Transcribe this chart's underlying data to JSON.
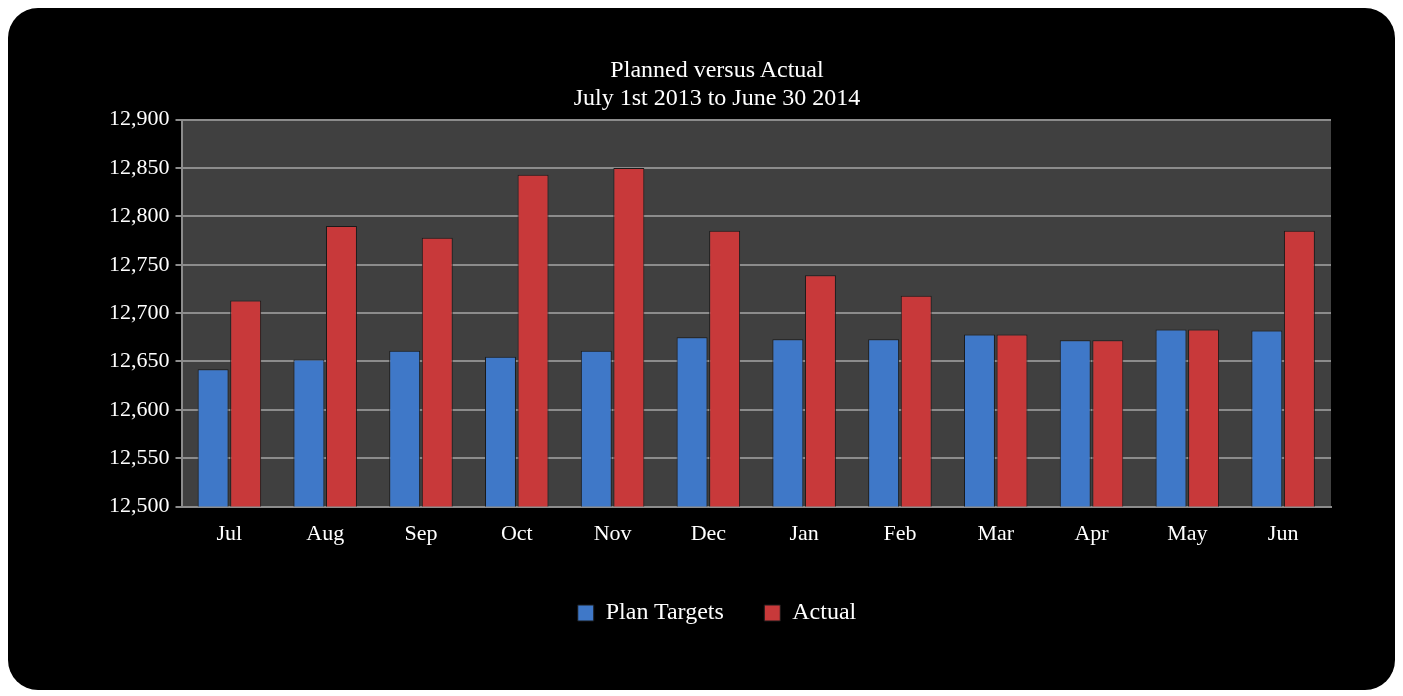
{
  "chart_data": {
    "type": "bar",
    "title": "Planned versus Actual",
    "subtitle": "July 1st 2013 to June 30 2014",
    "categories": [
      "Jul",
      "Aug",
      "Sep",
      "Oct",
      "Nov",
      "Dec",
      "Jan",
      "Feb",
      "Mar",
      "Apr",
      "May",
      "Jun"
    ],
    "series": [
      {
        "name": "Plan Targets",
        "color": "#3f78c8",
        "values": [
          12642,
          12652,
          12661,
          12655,
          12661,
          12675,
          12673,
          12673,
          12678,
          12672,
          12683,
          12682
        ]
      },
      {
        "name": "Actual",
        "color": "#c8393a",
        "values": [
          12713,
          12790,
          12778,
          12843,
          12850,
          12785,
          12739,
          12718,
          12678,
          12672,
          12683,
          12785
        ]
      }
    ],
    "ylim": [
      12500,
      12900
    ],
    "yticks": [
      {
        "value": 12500,
        "label": "12,500"
      },
      {
        "value": 12550,
        "label": "12,550"
      },
      {
        "value": 12600,
        "label": "12,600"
      },
      {
        "value": 12650,
        "label": "12,650"
      },
      {
        "value": 12700,
        "label": "12,700"
      },
      {
        "value": 12750,
        "label": "12,750"
      },
      {
        "value": 12800,
        "label": "12,800"
      },
      {
        "value": 12850,
        "label": "12,850"
      },
      {
        "value": 12900,
        "label": "12,900"
      }
    ],
    "grid": "y",
    "legend": "bottom"
  }
}
